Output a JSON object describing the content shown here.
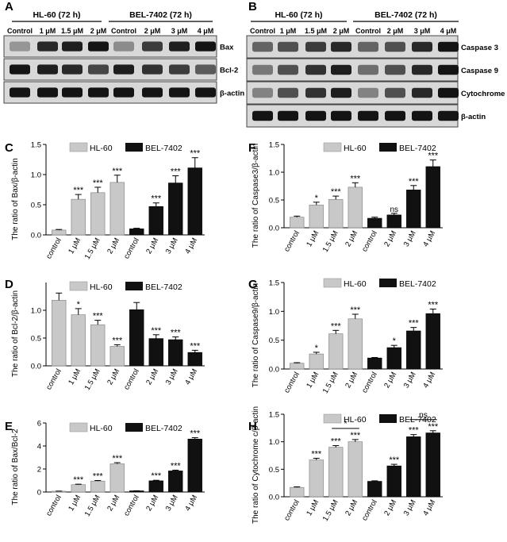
{
  "blot_a": {
    "letter": "A",
    "groups": [
      "HL-60  (72 h)",
      "BEL-7402  (72 h)"
    ],
    "lanes": [
      "Control",
      "1 μM",
      "1.5 μM",
      "2 μM",
      "Control",
      "2 μM",
      "3 μM",
      "4 μM"
    ],
    "rows": [
      {
        "label": "Bax",
        "intensity": [
          0.3,
          0.85,
          0.9,
          0.95,
          0.35,
          0.75,
          0.9,
          0.95
        ]
      },
      {
        "label": "Bcl-2",
        "intensity": [
          0.95,
          0.9,
          0.85,
          0.7,
          0.9,
          0.8,
          0.75,
          0.6
        ]
      },
      {
        "label": "β-actin",
        "intensity": [
          0.95,
          0.95,
          0.95,
          0.95,
          0.95,
          0.95,
          0.95,
          0.95
        ]
      }
    ]
  },
  "blot_b": {
    "letter": "B",
    "groups": [
      "HL-60  (72 h)",
      "BEL-7402  (72 h)"
    ],
    "lanes": [
      "Control",
      "1 μM",
      "1.5 μM",
      "2 μM",
      "Control",
      "2 μM",
      "3 μM",
      "4 μM"
    ],
    "rows": [
      {
        "label": "Caspase 3",
        "intensity": [
          0.55,
          0.65,
          0.75,
          0.85,
          0.55,
          0.65,
          0.85,
          0.95
        ]
      },
      {
        "label": "Caspase 9",
        "intensity": [
          0.45,
          0.65,
          0.8,
          0.9,
          0.5,
          0.65,
          0.85,
          0.95
        ]
      },
      {
        "label": "Cytochrome c",
        "intensity": [
          0.4,
          0.65,
          0.8,
          0.9,
          0.4,
          0.65,
          0.85,
          0.95
        ]
      },
      {
        "label": "β-actin",
        "intensity": [
          0.95,
          0.95,
          0.95,
          0.95,
          0.95,
          0.95,
          0.95,
          0.95
        ]
      }
    ]
  },
  "colors": {
    "hl60": "#c8c8c8",
    "bel7402": "#111111"
  },
  "chart_data": [
    {
      "letter": "C",
      "type": "bar",
      "ylabel": "The ratio of Bax/β-actin",
      "ylim": [
        0,
        1.5
      ],
      "yticks": [
        "0.0",
        "0.5",
        "1.0",
        "1.5"
      ],
      "ytick_values": [
        0,
        0.5,
        1.0,
        1.5
      ],
      "categories": [
        "control",
        "1 μM",
        "1.5 μM",
        "2 μM",
        "control",
        "2 μM",
        "3 μM",
        "4 μM"
      ],
      "values": [
        0.08,
        0.59,
        0.7,
        0.87,
        0.1,
        0.47,
        0.86,
        1.11
      ],
      "errors": [
        0.01,
        0.08,
        0.09,
        0.12,
        0.01,
        0.06,
        0.12,
        0.17
      ],
      "sig": [
        "",
        "***",
        "***",
        "***",
        "",
        "***",
        "***",
        "***"
      ],
      "legend": [
        "HL-60",
        "BEL-7402"
      ],
      "brackets": []
    },
    {
      "letter": "D",
      "type": "bar",
      "ylabel": "The ratio of Bcl-2/β-actin",
      "ylim": [
        0,
        1.5
      ],
      "yticks": [
        "0.0",
        "0.5",
        "1.0"
      ],
      "ytick_values": [
        0,
        0.5,
        1.0
      ],
      "categories": [
        "control",
        "1 μM",
        "1.5 μM",
        "2 μM",
        "control",
        "2 μM",
        "3 μM",
        "4 μM"
      ],
      "values": [
        1.18,
        0.92,
        0.74,
        0.35,
        1.01,
        0.49,
        0.47,
        0.24
      ],
      "errors": [
        0.13,
        0.11,
        0.08,
        0.03,
        0.13,
        0.07,
        0.05,
        0.04
      ],
      "sig": [
        "",
        "*",
        "***",
        "***",
        "",
        "***",
        "***",
        "***"
      ],
      "legend": [
        "HL-60",
        "BEL-7402"
      ],
      "brackets": []
    },
    {
      "letter": "E",
      "type": "bar",
      "ylabel": "The ratio of Bax/Bcl-2",
      "ylim": [
        0,
        6
      ],
      "yticks": [
        "0",
        "2",
        "4",
        "6"
      ],
      "ytick_values": [
        0,
        2,
        4,
        6
      ],
      "categories": [
        "control",
        "1 μM",
        "1.5 μM",
        "2 μM",
        "control",
        "2 μM",
        "3 μM",
        "4 μM"
      ],
      "values": [
        0.07,
        0.64,
        0.95,
        2.45,
        0.1,
        0.97,
        1.83,
        4.6
      ],
      "errors": [
        0.01,
        0.04,
        0.05,
        0.1,
        0.01,
        0.05,
        0.07,
        0.12
      ],
      "sig": [
        "",
        "***",
        "***",
        "***",
        "",
        "***",
        "***",
        "***"
      ],
      "legend": [
        "HL-60",
        "BEL-7402"
      ],
      "brackets": []
    },
    {
      "letter": "F",
      "type": "bar",
      "ylabel": "The ratio of Caspase3/β-actin",
      "ylim": [
        0,
        1.5
      ],
      "yticks": [
        "0.0",
        "0.5",
        "1.0",
        "1.5"
      ],
      "ytick_values": [
        0,
        0.5,
        1.0,
        1.5
      ],
      "categories": [
        "control",
        "1 μM",
        "1.5 μM",
        "2 μM",
        "control",
        "2 μM",
        "3 μM",
        "4 μM"
      ],
      "values": [
        0.19,
        0.41,
        0.51,
        0.73,
        0.17,
        0.23,
        0.68,
        1.1
      ],
      "errors": [
        0.02,
        0.05,
        0.06,
        0.08,
        0.02,
        0.03,
        0.08,
        0.12
      ],
      "sig": [
        "",
        "*",
        "***",
        "***",
        "",
        "ns",
        "***",
        "***"
      ],
      "legend": [
        "HL-60",
        "BEL-7402"
      ],
      "brackets": []
    },
    {
      "letter": "G",
      "type": "bar",
      "ylabel": "The ratio of Caspase9/β-actin",
      "ylim": [
        0,
        1.5
      ],
      "yticks": [
        "0.0",
        "0.5",
        "1.0",
        "1.5"
      ],
      "ytick_values": [
        0,
        0.5,
        1.0,
        1.5
      ],
      "categories": [
        "control",
        "1 μM",
        "1.5 μM",
        "2 μM",
        "control",
        "2 μM",
        "3 μM",
        "4 μM"
      ],
      "values": [
        0.1,
        0.26,
        0.61,
        0.87,
        0.19,
        0.37,
        0.66,
        0.96
      ],
      "errors": [
        0.01,
        0.03,
        0.06,
        0.08,
        0.01,
        0.04,
        0.06,
        0.08
      ],
      "sig": [
        "",
        "*",
        "***",
        "***",
        "",
        "*",
        "***",
        "***"
      ],
      "legend": [
        "HL-60",
        "BEL-7402"
      ],
      "brackets": []
    },
    {
      "letter": "H",
      "type": "bar",
      "ylabel": "The ratio of Cytochrome c/β-actin",
      "ylim": [
        0,
        1.5
      ],
      "yticks": [
        "0.0",
        "0.5",
        "1.0",
        "1.5"
      ],
      "ytick_values": [
        0,
        0.5,
        1.0,
        1.5
      ],
      "categories": [
        "control",
        "1 μM",
        "1.5 μM",
        "2 μM",
        "control",
        "2 μM",
        "3 μM",
        "4 μM"
      ],
      "values": [
        0.17,
        0.67,
        0.9,
        1.0,
        0.28,
        0.56,
        1.09,
        1.16
      ],
      "errors": [
        0.01,
        0.03,
        0.03,
        0.04,
        0.01,
        0.03,
        0.04,
        0.04
      ],
      "sig": [
        "",
        "***",
        "***",
        "***",
        "",
        "***",
        "***",
        "***"
      ],
      "legend": [
        "HL-60",
        "BEL-7402"
      ],
      "brackets": [
        {
          "from": 2,
          "to": 3,
          "label": "*"
        },
        {
          "from": 6,
          "to": 7,
          "label": "ns"
        }
      ]
    }
  ]
}
